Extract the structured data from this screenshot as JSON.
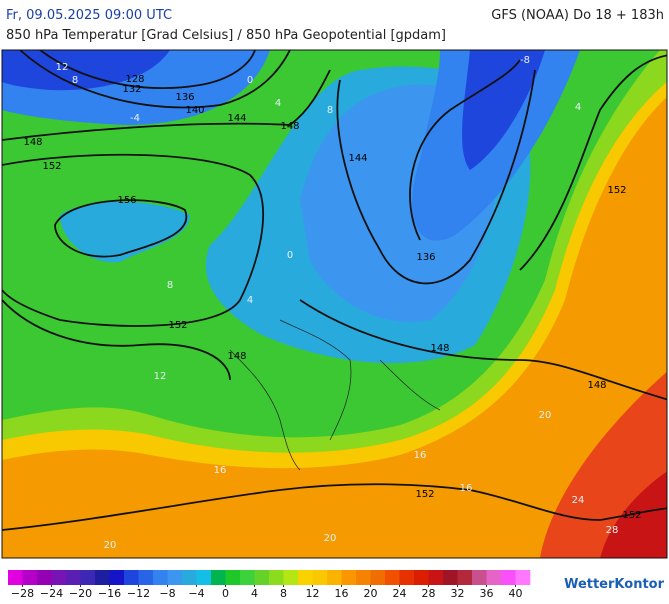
{
  "header": {
    "datetime": "Fr, 09.05.2025 09:00 UTC",
    "model": "GFS (NOAA) Do 18 + 183h",
    "subtitle": "850 hPa Temperatur [Grad Celsius] / 850 hPa Geopotential [gpdam]"
  },
  "map": {
    "labels": [
      "12",
      "128",
      "132",
      "136",
      "140",
      "144",
      "148",
      "152",
      "156",
      "152",
      "148",
      "148",
      "144",
      "136",
      "148",
      "148",
      "152",
      "152",
      "152",
      "0",
      "4",
      "8",
      "-4",
      "-8",
      "4",
      "8",
      "0",
      "4",
      "8",
      "12",
      "16",
      "20",
      "16",
      "20",
      "24",
      "28",
      "16",
      "20"
    ]
  },
  "colorbar": {
    "range": [
      -30,
      42
    ],
    "colors": [
      "#e000e0",
      "#b400c8",
      "#9600b4",
      "#7814b4",
      "#5a1eb4",
      "#3c28b4",
      "#1e1ea0",
      "#1414c8",
      "#1e46dc",
      "#2864e6",
      "#3282f0",
      "#3c96f0",
      "#28aadc",
      "#14bee6",
      "#00b450",
      "#1ec828",
      "#3cd23c",
      "#64d228",
      "#8cdc1e",
      "#b4e614",
      "#fad200",
      "#fac800",
      "#fab400",
      "#fa9600",
      "#f58200",
      "#f06e00",
      "#f05000",
      "#e63200",
      "#dc1e00",
      "#c81414",
      "#a01428",
      "#b4283c",
      "#c8508c",
      "#e664c8",
      "#fa50fa",
      "#ff78ff"
    ],
    "ticks": [
      {
        "value": -28,
        "label": "−28"
      },
      {
        "value": -24,
        "label": "−24"
      },
      {
        "value": -20,
        "label": "−20"
      },
      {
        "value": -16,
        "label": "−16"
      },
      {
        "value": -12,
        "label": "−12"
      },
      {
        "value": -8,
        "label": "−8"
      },
      {
        "value": -4,
        "label": "−4"
      },
      0,
      4,
      8,
      12,
      16,
      20,
      24,
      28,
      32,
      36,
      40
    ]
  },
  "logo": "WetterKontor"
}
